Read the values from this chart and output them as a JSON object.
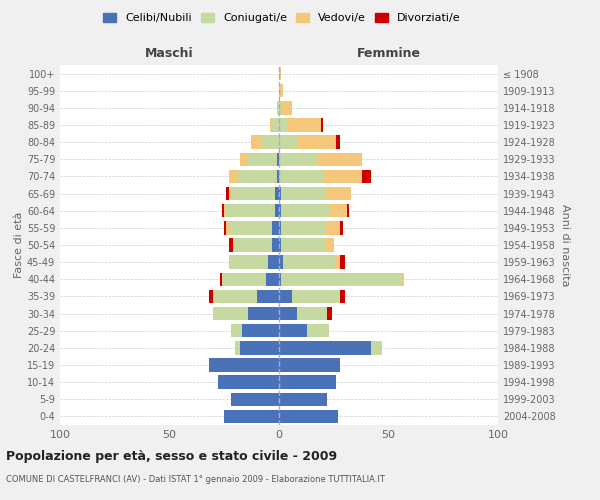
{
  "age_groups": [
    "0-4",
    "5-9",
    "10-14",
    "15-19",
    "20-24",
    "25-29",
    "30-34",
    "35-39",
    "40-44",
    "45-49",
    "50-54",
    "55-59",
    "60-64",
    "65-69",
    "70-74",
    "75-79",
    "80-84",
    "85-89",
    "90-94",
    "95-99",
    "100+"
  ],
  "birth_years": [
    "2004-2008",
    "1999-2003",
    "1994-1998",
    "1989-1993",
    "1984-1988",
    "1979-1983",
    "1974-1978",
    "1969-1973",
    "1964-1968",
    "1959-1963",
    "1954-1958",
    "1949-1953",
    "1944-1948",
    "1939-1943",
    "1934-1938",
    "1929-1933",
    "1924-1928",
    "1919-1923",
    "1914-1918",
    "1909-1913",
    "≤ 1908"
  ],
  "colors": {
    "celibi": "#4a72b8",
    "coniugati": "#c5d9a0",
    "vedovi": "#f5c77a",
    "divorziati": "#cc0000"
  },
  "maschi": {
    "celibi": [
      25,
      22,
      28,
      32,
      18,
      17,
      14,
      10,
      6,
      5,
      3,
      3,
      2,
      2,
      1,
      1,
      0,
      0,
      0,
      0,
      0
    ],
    "coniugati": [
      0,
      0,
      0,
      0,
      2,
      5,
      16,
      20,
      20,
      18,
      18,
      20,
      22,
      20,
      18,
      13,
      8,
      3,
      1,
      0,
      0
    ],
    "vedovi": [
      0,
      0,
      0,
      0,
      0,
      0,
      0,
      0,
      0,
      0,
      0,
      1,
      1,
      1,
      4,
      4,
      5,
      1,
      0,
      0,
      0
    ],
    "divorziati": [
      0,
      0,
      0,
      0,
      0,
      0,
      0,
      2,
      1,
      0,
      2,
      1,
      1,
      1,
      0,
      0,
      0,
      0,
      0,
      0,
      0
    ]
  },
  "femmine": {
    "celibi": [
      27,
      22,
      26,
      28,
      42,
      13,
      8,
      6,
      1,
      2,
      1,
      1,
      1,
      1,
      0,
      0,
      0,
      0,
      0,
      0,
      0
    ],
    "coniugati": [
      0,
      0,
      0,
      0,
      5,
      10,
      14,
      22,
      55,
      24,
      20,
      20,
      22,
      20,
      20,
      18,
      8,
      4,
      1,
      0,
      0
    ],
    "vedovi": [
      0,
      0,
      0,
      0,
      0,
      0,
      0,
      0,
      1,
      2,
      4,
      7,
      8,
      12,
      18,
      20,
      18,
      15,
      5,
      2,
      1
    ],
    "divorziati": [
      0,
      0,
      0,
      0,
      0,
      0,
      2,
      2,
      0,
      2,
      0,
      1,
      1,
      0,
      4,
      0,
      2,
      1,
      0,
      0,
      0
    ]
  },
  "title": "Popolazione per età, sesso e stato civile - 2009",
  "subtitle": "COMUNE DI CASTELFRANCI (AV) - Dati ISTAT 1° gennaio 2009 - Elaborazione TUTTITALIA.IT",
  "xlabel_left": "Maschi",
  "xlabel_right": "Femmine",
  "ylabel_left": "Fasce di età",
  "ylabel_right": "Anni di nascita",
  "xlim": 100,
  "legend_labels": [
    "Celibi/Nubili",
    "Coniugati/e",
    "Vedovi/e",
    "Divorziati/e"
  ],
  "bg_color": "#f0f0f0",
  "plot_bg": "#ffffff"
}
